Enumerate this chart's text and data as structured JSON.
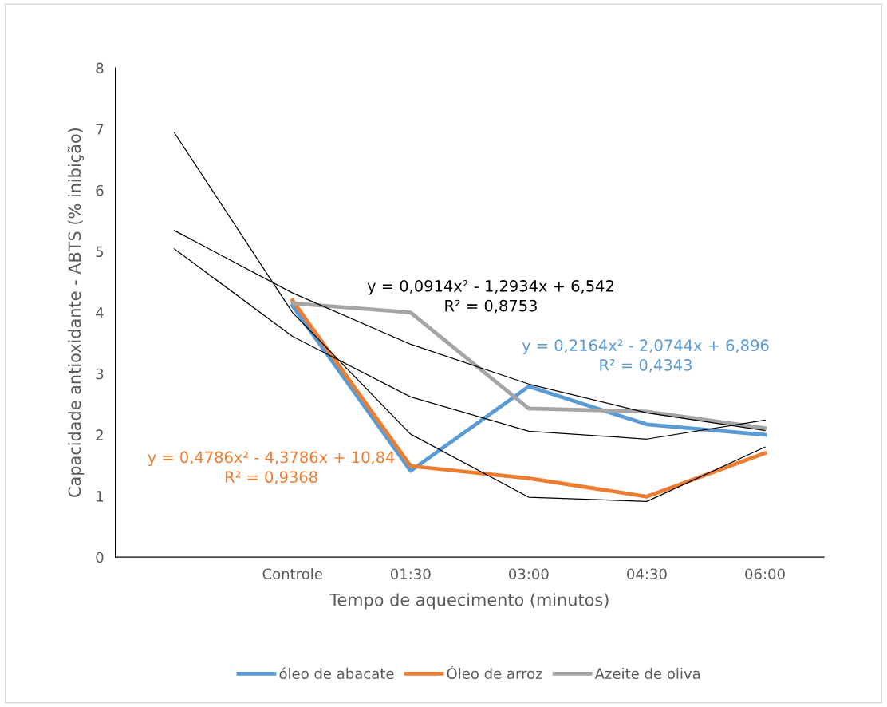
{
  "chart_data": {
    "type": "line",
    "xlabel": "Tempo de aquecimento (minutos)",
    "ylabel": "Capacidade antioxidante - ABTS (% inibição)",
    "categories": [
      null,
      "Controle",
      "01:30",
      "03:00",
      "04:30",
      "06:00"
    ],
    "ylim": [
      0,
      8
    ],
    "yticks": [
      0,
      1,
      2,
      3,
      4,
      5,
      6,
      7,
      8
    ],
    "grid": false,
    "legend": "bottom",
    "marker": "none",
    "line_style": "solid",
    "series": [
      {
        "name": "óleo de abacate",
        "color": "#5b9bd5",
        "values": [
          null,
          4.11,
          1.41,
          2.79,
          2.17,
          2.0
        ]
      },
      {
        "name": "Óleo de arroz",
        "color": "#ed7d31",
        "values": [
          null,
          4.2,
          1.49,
          1.29,
          0.99,
          1.7
        ]
      },
      {
        "name": "Azeite de oliva",
        "color": "#a5a5a5",
        "values": [
          null,
          4.15,
          4.0,
          2.43,
          2.38,
          2.11
        ]
      },
      {
        "type": "line",
        "color": "#000000",
        "values": [
          6.94,
          4.0,
          2.01,
          0.98,
          0.91,
          1.8
        ]
      },
      {
        "type": "line",
        "color": "#000000",
        "values": [
          5.04,
          3.61,
          2.62,
          2.06,
          1.93,
          2.24
        ]
      },
      {
        "type": "line",
        "color": "#000000",
        "values": [
          5.34,
          4.32,
          3.48,
          2.83,
          2.36,
          2.07
        ]
      }
    ],
    "annotations": [
      "y = 0,0914x² - 1,2934x + 6,542\nR² = 0,8753",
      "y = 0,2164x² - 2,0744x + 6,896\nR² = 0,4343",
      "y = 0,4786x² - 4,3786x + 10,84\nR² = 0,9368"
    ]
  }
}
